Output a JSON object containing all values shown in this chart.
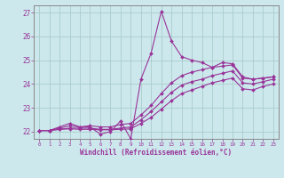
{
  "xlabel": "Windchill (Refroidissement éolien,°C)",
  "xlim": [
    -0.5,
    23.5
  ],
  "ylim": [
    21.7,
    27.3
  ],
  "xticks": [
    0,
    1,
    2,
    3,
    4,
    5,
    6,
    7,
    8,
    9,
    10,
    11,
    12,
    13,
    14,
    15,
    16,
    17,
    18,
    19,
    20,
    21,
    22,
    23
  ],
  "yticks": [
    22,
    23,
    24,
    25,
    26,
    27
  ],
  "bg_color": "#cce8ec",
  "grid_color": "#aacccc",
  "line_color": "#993399",
  "spine_color": "#888888",
  "lines": [
    {
      "x": [
        0,
        1,
        2,
        3,
        4,
        5,
        6,
        7,
        8,
        9,
        10,
        11,
        12,
        13,
        14,
        15,
        16,
        17,
        18,
        19,
        20,
        21,
        22,
        23
      ],
      "y": [
        22.05,
        22.05,
        22.2,
        22.35,
        22.2,
        22.2,
        21.9,
        22.0,
        22.45,
        21.7,
        24.2,
        25.3,
        27.05,
        25.8,
        25.15,
        25.0,
        24.9,
        24.7,
        24.9,
        24.85,
        24.3,
        24.2,
        24.25,
        24.3
      ]
    },
    {
      "x": [
        0,
        1,
        2,
        3,
        4,
        5,
        6,
        7,
        8,
        9,
        10,
        11,
        12,
        13,
        14,
        15,
        16,
        17,
        18,
        19,
        20,
        21,
        22,
        23
      ],
      "y": [
        22.05,
        22.05,
        22.15,
        22.25,
        22.2,
        22.25,
        22.2,
        22.2,
        22.3,
        22.35,
        22.7,
        23.1,
        23.6,
        24.05,
        24.35,
        24.5,
        24.6,
        24.7,
        24.75,
        24.8,
        24.25,
        24.2,
        24.25,
        24.3
      ]
    },
    {
      "x": [
        0,
        1,
        2,
        3,
        4,
        5,
        6,
        7,
        8,
        9,
        10,
        11,
        12,
        13,
        14,
        15,
        16,
        17,
        18,
        19,
        20,
        21,
        22,
        23
      ],
      "y": [
        22.05,
        22.05,
        22.1,
        22.15,
        22.15,
        22.15,
        22.1,
        22.1,
        22.15,
        22.2,
        22.5,
        22.85,
        23.25,
        23.65,
        23.95,
        24.1,
        24.2,
        24.35,
        24.45,
        24.55,
        24.05,
        24.0,
        24.1,
        24.2
      ]
    },
    {
      "x": [
        0,
        1,
        2,
        3,
        4,
        5,
        6,
        7,
        8,
        9,
        10,
        11,
        12,
        13,
        14,
        15,
        16,
        17,
        18,
        19,
        20,
        21,
        22,
        23
      ],
      "y": [
        22.05,
        22.05,
        22.1,
        22.12,
        22.1,
        22.1,
        22.08,
        22.08,
        22.1,
        22.12,
        22.35,
        22.6,
        22.95,
        23.3,
        23.6,
        23.75,
        23.9,
        24.05,
        24.15,
        24.25,
        23.8,
        23.75,
        23.9,
        24.0
      ]
    }
  ]
}
